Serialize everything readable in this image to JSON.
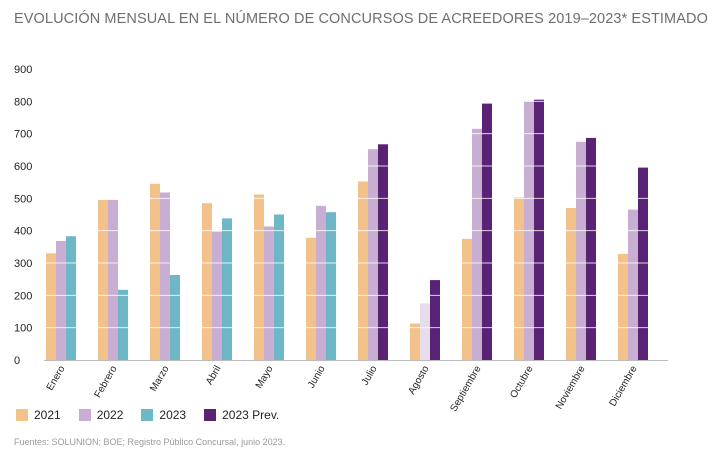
{
  "title": "EVOLUCIÓN MENSUAL EN EL NÚMERO DE CONCURSOS DE ACREEDORES 2019–2023* ESTIMADO",
  "source": "Fuentes: SOLUNION; BOE; Registro Público Concursal, junio 2023.",
  "chart_data": {
    "type": "bar",
    "categories": [
      "Enero",
      "Febrero",
      "Marzo",
      "Abril",
      "Mayo",
      "Junio",
      "Julio",
      "Agosto",
      "Septiembre",
      "Octubre",
      "Noviembre",
      "Diciembre"
    ],
    "series": [
      {
        "name": "2021",
        "color": "#f3c28b",
        "values": [
          330,
          495,
          545,
          485,
          512,
          378,
          552,
          113,
          375,
          503,
          470,
          328
        ]
      },
      {
        "name": "2022",
        "color": "#c8aed2",
        "values": [
          368,
          495,
          518,
          397,
          413,
          477,
          652,
          175,
          715,
          800,
          675,
          465
        ]
      },
      {
        "name": "2023",
        "color": "#6db7c7",
        "values": [
          383,
          217,
          263,
          438,
          450,
          457,
          null,
          null,
          null,
          null,
          null,
          null
        ]
      },
      {
        "name": "2023 Prev.",
        "color": "#5a2274",
        "values": [
          null,
          null,
          null,
          null,
          null,
          null,
          667,
          247,
          793,
          805,
          687,
          595
        ]
      }
    ],
    "faded": {
      "category": "Agosto",
      "series": "2022",
      "color": "#e6dceb"
    },
    "ylim": [
      0,
      900
    ],
    "yticks": [
      0,
      100,
      200,
      300,
      400,
      500,
      600,
      700,
      800,
      900
    ],
    "legend_position": "bottom-left",
    "grid": false
  }
}
